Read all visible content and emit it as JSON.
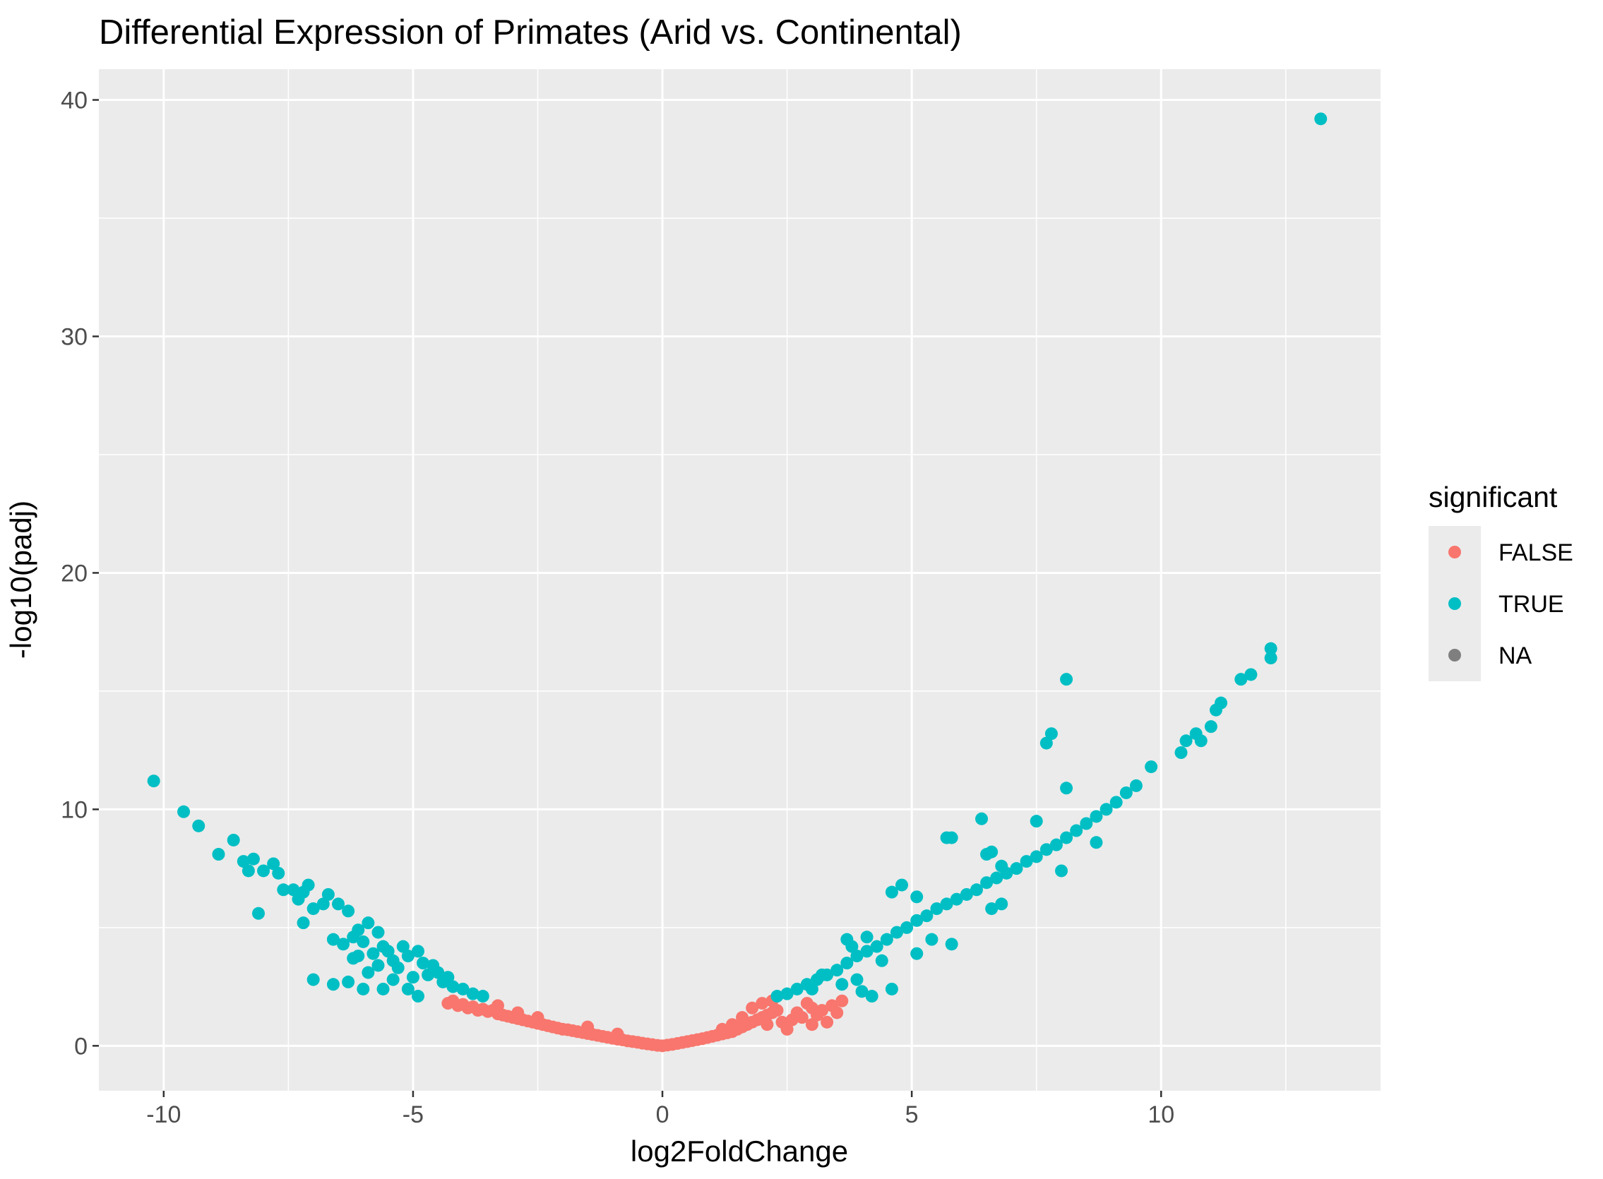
{
  "chart_data": {
    "type": "scatter",
    "title": "Differential Expression of Primates (Arid vs. Continental)",
    "xlabel": "log2FoldChange",
    "ylabel": "-log10(padj)",
    "xlim": [
      -11.3,
      14.4
    ],
    "ylim": [
      -1.9,
      41.3
    ],
    "x_ticks": [
      -10,
      -5,
      0,
      5,
      10
    ],
    "y_ticks": [
      0,
      10,
      20,
      30,
      40
    ],
    "x_tick_labels": [
      "-10",
      "-5",
      "0",
      "5",
      "10"
    ],
    "y_tick_labels": [
      "0",
      "10",
      "20",
      "30",
      "40"
    ],
    "grid": true,
    "legend": {
      "title": "significant",
      "position": "right",
      "entries": [
        {
          "label": "FALSE",
          "color": "#F8766D"
        },
        {
          "label": "TRUE",
          "color": "#00BFC4"
        },
        {
          "label": "NA",
          "color": "#7F7F7F"
        }
      ]
    },
    "series": [
      {
        "name": "FALSE",
        "color": "#F8766D",
        "points": [
          [
            -4.3,
            1.8
          ],
          [
            -4.2,
            1.9
          ],
          [
            -4.1,
            1.7
          ],
          [
            -4.0,
            1.75
          ],
          [
            -3.9,
            1.6
          ],
          [
            -3.8,
            1.65
          ],
          [
            -3.7,
            1.5
          ],
          [
            -3.6,
            1.55
          ],
          [
            -3.5,
            1.45
          ],
          [
            -3.4,
            1.5
          ],
          [
            -3.3,
            1.35
          ],
          [
            -3.2,
            1.3
          ],
          [
            -3.1,
            1.25
          ],
          [
            -3.0,
            1.2
          ],
          [
            -2.9,
            1.15
          ],
          [
            -2.8,
            1.1
          ],
          [
            -2.7,
            1.05
          ],
          [
            -2.6,
            1.0
          ],
          [
            -2.5,
            0.95
          ],
          [
            -2.4,
            0.9
          ],
          [
            -2.3,
            0.85
          ],
          [
            -2.2,
            0.8
          ],
          [
            -2.1,
            0.75
          ],
          [
            -2.0,
            0.7
          ],
          [
            -1.9,
            0.68
          ],
          [
            -1.8,
            0.64
          ],
          [
            -1.7,
            0.6
          ],
          [
            -1.6,
            0.56
          ],
          [
            -1.5,
            0.52
          ],
          [
            -1.4,
            0.48
          ],
          [
            -1.3,
            0.44
          ],
          [
            -1.2,
            0.4
          ],
          [
            -1.1,
            0.36
          ],
          [
            -1.0,
            0.32
          ],
          [
            -0.9,
            0.28
          ],
          [
            -0.8,
            0.25
          ],
          [
            -0.7,
            0.21
          ],
          [
            -0.6,
            0.18
          ],
          [
            -0.5,
            0.15
          ],
          [
            -0.4,
            0.11
          ],
          [
            -0.3,
            0.08
          ],
          [
            -0.2,
            0.05
          ],
          [
            -0.1,
            0.02
          ],
          [
            0.0,
            0.0
          ],
          [
            0.1,
            0.03
          ],
          [
            0.2,
            0.06
          ],
          [
            0.3,
            0.1
          ],
          [
            0.4,
            0.14
          ],
          [
            0.5,
            0.18
          ],
          [
            0.6,
            0.22
          ],
          [
            0.7,
            0.26
          ],
          [
            0.8,
            0.3
          ],
          [
            0.9,
            0.35
          ],
          [
            1.0,
            0.4
          ],
          [
            1.1,
            0.45
          ],
          [
            1.2,
            0.5
          ],
          [
            1.3,
            0.55
          ],
          [
            1.4,
            0.6
          ],
          [
            1.5,
            0.7
          ],
          [
            1.6,
            0.8
          ],
          [
            1.7,
            0.9
          ],
          [
            1.8,
            1.0
          ],
          [
            1.9,
            1.1
          ],
          [
            2.0,
            1.2
          ],
          [
            2.1,
            1.3
          ],
          [
            2.2,
            1.4
          ],
          [
            2.3,
            1.5
          ],
          [
            2.0,
            1.8
          ],
          [
            2.2,
            1.9
          ],
          [
            1.8,
            1.6
          ],
          [
            2.1,
            0.9
          ],
          [
            2.4,
            1.0
          ],
          [
            2.5,
            0.7
          ],
          [
            2.6,
            1.1
          ],
          [
            2.8,
            1.2
          ],
          [
            3.0,
            0.9
          ],
          [
            3.1,
            1.3
          ],
          [
            3.2,
            1.5
          ],
          [
            3.3,
            1.0
          ],
          [
            3.4,
            1.7
          ],
          [
            3.5,
            1.4
          ],
          [
            3.6,
            1.9
          ],
          [
            3.0,
            1.6
          ],
          [
            2.9,
            1.8
          ],
          [
            2.7,
            1.4
          ],
          [
            1.6,
            1.2
          ],
          [
            1.4,
            0.9
          ],
          [
            1.2,
            0.7
          ],
          [
            -3.3,
            1.7
          ],
          [
            -2.9,
            1.4
          ],
          [
            -2.5,
            1.2
          ],
          [
            -1.5,
            0.8
          ],
          [
            -0.9,
            0.5
          ]
        ]
      },
      {
        "name": "TRUE",
        "color": "#00BFC4",
        "points": [
          [
            -10.2,
            11.2
          ],
          [
            -9.6,
            9.9
          ],
          [
            -9.3,
            9.3
          ],
          [
            -8.9,
            8.1
          ],
          [
            -8.6,
            8.7
          ],
          [
            -8.4,
            7.8
          ],
          [
            -8.3,
            7.4
          ],
          [
            -8.2,
            7.9
          ],
          [
            -8.1,
            5.6
          ],
          [
            -8.0,
            7.4
          ],
          [
            -7.8,
            7.7
          ],
          [
            -7.7,
            7.3
          ],
          [
            -7.6,
            6.6
          ],
          [
            -7.4,
            6.6
          ],
          [
            -7.3,
            6.2
          ],
          [
            -7.2,
            6.5
          ],
          [
            -7.2,
            5.2
          ],
          [
            -7.1,
            6.8
          ],
          [
            -7.0,
            5.8
          ],
          [
            -6.8,
            6.0
          ],
          [
            -6.7,
            6.4
          ],
          [
            -6.6,
            4.5
          ],
          [
            -6.5,
            6.0
          ],
          [
            -6.4,
            4.3
          ],
          [
            -6.3,
            5.7
          ],
          [
            -6.3,
            2.7
          ],
          [
            -6.2,
            4.6
          ],
          [
            -6.2,
            3.7
          ],
          [
            -7.0,
            2.8
          ],
          [
            -6.6,
            2.6
          ],
          [
            -6.1,
            4.9
          ],
          [
            -6.0,
            4.4
          ],
          [
            -6.0,
            2.4
          ],
          [
            -5.9,
            5.2
          ],
          [
            -5.9,
            3.1
          ],
          [
            -5.8,
            3.9
          ],
          [
            -5.7,
            4.8
          ],
          [
            -5.6,
            4.2
          ],
          [
            -5.6,
            2.4
          ],
          [
            -5.5,
            4.0
          ],
          [
            -5.4,
            3.6
          ],
          [
            -5.3,
            3.3
          ],
          [
            -5.2,
            4.2
          ],
          [
            -5.1,
            3.8
          ],
          [
            -5.0,
            2.9
          ],
          [
            -4.9,
            4.0
          ],
          [
            -4.8,
            3.5
          ],
          [
            -4.7,
            3.0
          ],
          [
            -4.6,
            3.4
          ],
          [
            -4.5,
            3.1
          ],
          [
            -4.4,
            2.7
          ],
          [
            -4.3,
            2.9
          ],
          [
            -4.2,
            2.5
          ],
          [
            -4.0,
            2.4
          ],
          [
            -3.8,
            2.2
          ],
          [
            -3.6,
            2.1
          ],
          [
            -4.9,
            2.1
          ],
          [
            -5.1,
            2.4
          ],
          [
            -5.4,
            2.8
          ],
          [
            -5.7,
            3.4
          ],
          [
            -6.1,
            3.8
          ],
          [
            2.3,
            2.1
          ],
          [
            2.5,
            2.2
          ],
          [
            2.7,
            2.4
          ],
          [
            2.9,
            2.6
          ],
          [
            3.1,
            2.8
          ],
          [
            3.3,
            3.0
          ],
          [
            3.5,
            3.2
          ],
          [
            3.7,
            3.5
          ],
          [
            3.9,
            3.8
          ],
          [
            4.1,
            4.0
          ],
          [
            4.3,
            4.2
          ],
          [
            4.5,
            4.5
          ],
          [
            4.7,
            4.8
          ],
          [
            4.9,
            5.0
          ],
          [
            5.1,
            5.3
          ],
          [
            5.3,
            5.5
          ],
          [
            5.5,
            5.8
          ],
          [
            5.7,
            6.0
          ],
          [
            5.9,
            6.2
          ],
          [
            6.1,
            6.4
          ],
          [
            6.3,
            6.6
          ],
          [
            6.5,
            6.9
          ],
          [
            6.7,
            7.1
          ],
          [
            6.9,
            7.3
          ],
          [
            7.1,
            7.5
          ],
          [
            7.3,
            7.8
          ],
          [
            7.5,
            8.0
          ],
          [
            7.7,
            8.3
          ],
          [
            7.9,
            8.5
          ],
          [
            8.1,
            8.8
          ],
          [
            8.3,
            9.1
          ],
          [
            8.5,
            9.4
          ],
          [
            8.7,
            9.7
          ],
          [
            8.9,
            10.0
          ],
          [
            9.1,
            10.3
          ],
          [
            9.3,
            10.7
          ],
          [
            9.5,
            11.0
          ],
          [
            9.8,
            11.8
          ],
          [
            10.4,
            12.4
          ],
          [
            10.5,
            12.9
          ],
          [
            10.7,
            13.2
          ],
          [
            10.8,
            12.9
          ],
          [
            11.0,
            13.5
          ],
          [
            11.1,
            14.2
          ],
          [
            11.2,
            14.5
          ],
          [
            11.6,
            15.5
          ],
          [
            11.8,
            15.7
          ],
          [
            12.2,
            16.4
          ],
          [
            12.2,
            16.8
          ],
          [
            13.2,
            39.2
          ],
          [
            8.1,
            15.5
          ],
          [
            7.8,
            13.2
          ],
          [
            7.7,
            12.8
          ],
          [
            8.1,
            10.9
          ],
          [
            7.5,
            9.5
          ],
          [
            6.4,
            9.6
          ],
          [
            5.7,
            8.8
          ],
          [
            5.8,
            8.8
          ],
          [
            6.5,
            8.1
          ],
          [
            6.6,
            8.2
          ],
          [
            6.8,
            7.6
          ],
          [
            8.0,
            7.4
          ],
          [
            8.7,
            8.6
          ],
          [
            6.8,
            6.0
          ],
          [
            6.6,
            5.8
          ],
          [
            5.8,
            4.3
          ],
          [
            5.1,
            3.9
          ],
          [
            5.4,
            4.5
          ],
          [
            4.6,
            6.5
          ],
          [
            4.8,
            6.8
          ],
          [
            5.1,
            6.3
          ],
          [
            4.6,
            2.4
          ],
          [
            4.4,
            3.6
          ],
          [
            4.2,
            2.1
          ],
          [
            4.0,
            2.3
          ],
          [
            3.9,
            2.8
          ],
          [
            3.7,
            4.5
          ],
          [
            3.6,
            2.6
          ],
          [
            3.8,
            4.2
          ],
          [
            4.1,
            4.6
          ],
          [
            3.2,
            3.0
          ],
          [
            3.0,
            2.4
          ]
        ]
      },
      {
        "name": "NA",
        "color": "#7F7F7F",
        "points": []
      }
    ]
  }
}
